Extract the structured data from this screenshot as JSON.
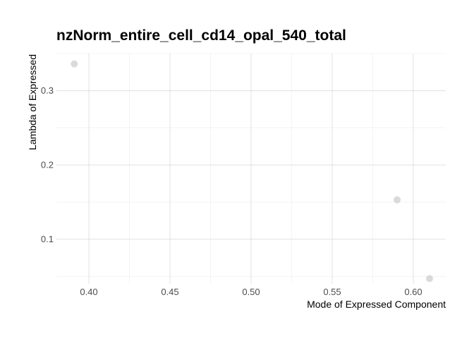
{
  "chart_data": {
    "type": "scatter",
    "title": "nzNorm_entire_cell_cd14_opal_540_total",
    "xlabel": "Mode of Expressed Component",
    "ylabel": "Lambda of Expressed",
    "xlim": [
      0.38,
      0.62
    ],
    "ylim": [
      0.04,
      0.35
    ],
    "x_ticks": [
      0.4,
      0.45,
      0.5,
      0.55,
      0.6
    ],
    "x_tick_labels": [
      "0.40",
      "0.45",
      "0.50",
      "0.55",
      "0.60"
    ],
    "y_ticks": [
      0.1,
      0.2,
      0.3
    ],
    "y_tick_labels": [
      "0.1",
      "0.2",
      "0.3"
    ],
    "grid": true,
    "point_color": "#d3d3d3",
    "points": [
      {
        "x": 0.391,
        "y": 0.336
      },
      {
        "x": 0.59,
        "y": 0.153
      },
      {
        "x": 0.61,
        "y": 0.047
      }
    ]
  }
}
